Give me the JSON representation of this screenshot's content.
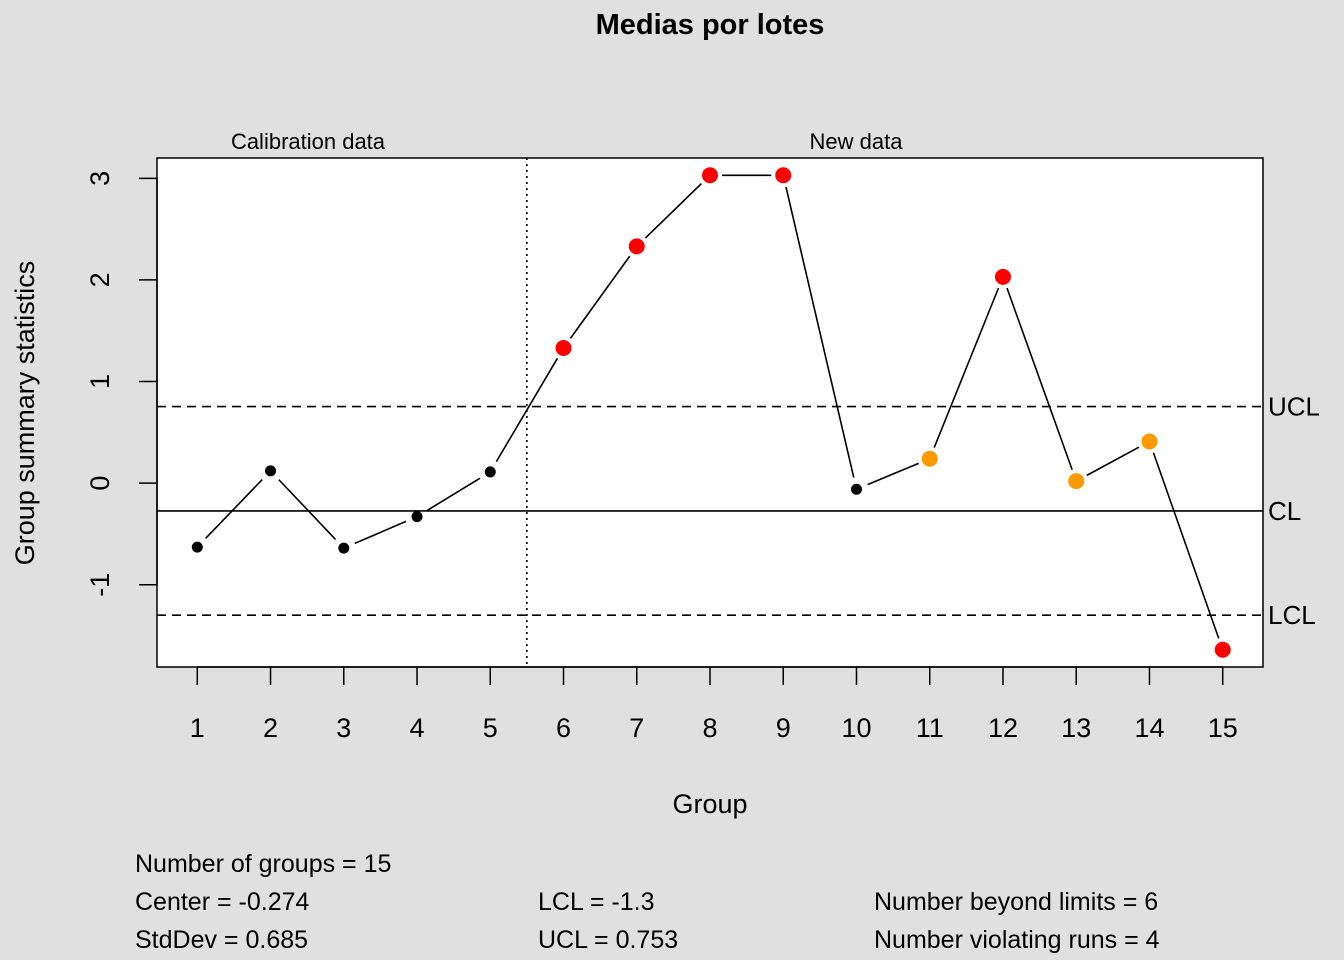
{
  "chart_data": {
    "type": "line",
    "title": "Medias por lotes",
    "xlabel": "Group",
    "ylabel": "Group summary statistics",
    "x": [
      1,
      2,
      3,
      4,
      5,
      6,
      7,
      8,
      9,
      10,
      11,
      12,
      13,
      14,
      15
    ],
    "values": [
      -0.63,
      0.12,
      -0.64,
      -0.33,
      0.11,
      1.33,
      2.33,
      3.03,
      3.03,
      -0.06,
      0.24,
      2.03,
      0.02,
      0.41,
      -1.64
    ],
    "point_status": [
      "normal",
      "normal",
      "normal",
      "normal",
      "normal",
      "beyond",
      "beyond",
      "beyond",
      "beyond",
      "normal",
      "violating",
      "beyond",
      "violating",
      "violating",
      "beyond"
    ],
    "xlim": [
      0.45,
      15.55
    ],
    "ylim": [
      -1.81,
      3.2
    ],
    "yticks": [
      -1,
      0,
      1,
      2,
      3
    ],
    "xticks": [
      1,
      2,
      3,
      4,
      5,
      6,
      7,
      8,
      9,
      10,
      11,
      12,
      13,
      14,
      15
    ],
    "calibration_boundary": 5.5,
    "limits": [
      {
        "label": "UCL",
        "value": 0.753,
        "style": "dashed"
      },
      {
        "label": "CL",
        "value": -0.274,
        "style": "solid"
      },
      {
        "label": "LCL",
        "value": -1.3,
        "style": "dashed"
      }
    ],
    "section_labels": [
      "Calibration data",
      "New data"
    ],
    "colors": {
      "normal": "#000000",
      "beyond": "#ff0000",
      "violating": "#ff9900",
      "background": "#e0e0e0",
      "panel": "#ffffff"
    }
  },
  "stats": {
    "groups": "Number of groups = 15",
    "center": "Center = -0.274",
    "stddev": "StdDev = 0.685",
    "lcl": "LCL = -1.3",
    "ucl": "UCL = 0.753",
    "beyond": "Number beyond limits = 6",
    "violating": "Number violating runs = 4"
  }
}
